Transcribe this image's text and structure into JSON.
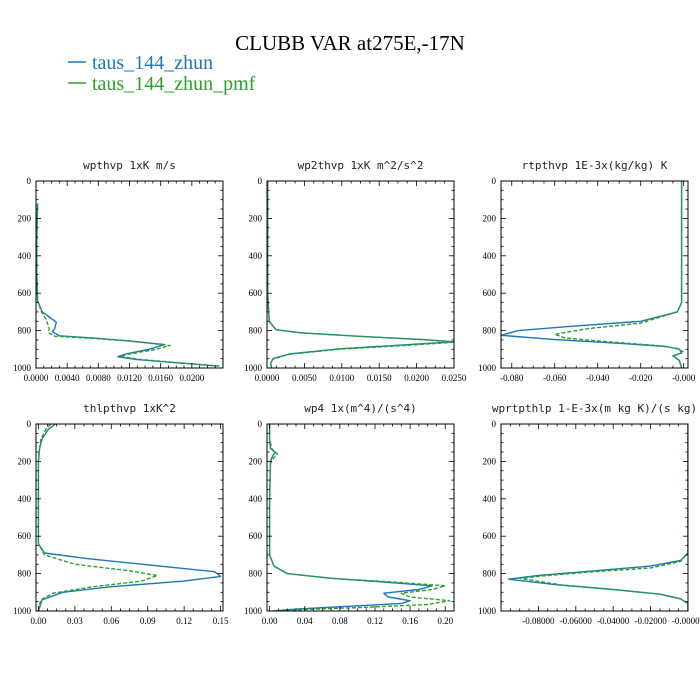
{
  "title": "CLUBB VAR at275E,-17N",
  "legend": [
    {
      "label": "taus_144_zhun",
      "color": "#1f77b4",
      "dash": "solid"
    },
    {
      "label": "taus_144_zhun_pmf",
      "color": "#2ca02c",
      "dash": "dashed"
    }
  ],
  "chart_data": [
    {
      "type": "line",
      "title": "wpthvp  1xK m/s",
      "xlim": [
        0.0,
        0.024
      ],
      "ylim": [
        1000,
        0
      ],
      "xticks": [
        0.0,
        0.004,
        0.008,
        0.012,
        0.016,
        0.02
      ],
      "xticklabels": [
        "0.0000",
        "0.0040",
        "0.0080",
        "0.0120",
        "0.0160",
        "0.0200"
      ],
      "yticks": [
        0,
        200,
        400,
        600,
        800,
        1000
      ],
      "yticklabels": [
        "0",
        "200",
        "400",
        "600",
        "800",
        "1000"
      ],
      "series": [
        {
          "name": "taus_144_zhun",
          "points": [
            [
              0.0002,
              120
            ],
            [
              0.0001,
              300
            ],
            [
              0.0001,
              500
            ],
            [
              0.0002,
              640
            ],
            [
              0.0008,
              700
            ],
            [
              0.0018,
              730
            ],
            [
              0.0026,
              755
            ],
            [
              0.0024,
              790
            ],
            [
              0.0021,
              805
            ],
            [
              0.003,
              828
            ],
            [
              0.0075,
              840
            ],
            [
              0.012,
              855
            ],
            [
              0.0165,
              875
            ],
            [
              0.0145,
              900
            ],
            [
              0.0115,
              925
            ],
            [
              0.0105,
              940
            ],
            [
              0.013,
              955
            ],
            [
              0.0175,
              970
            ],
            [
              0.0235,
              990
            ]
          ]
        },
        {
          "name": "taus_144_zhun_pmf",
          "points": [
            [
              0.0002,
              120
            ],
            [
              0.0001,
              300
            ],
            [
              0.0001,
              500
            ],
            [
              0.0002,
              640
            ],
            [
              0.0007,
              700
            ],
            [
              0.0013,
              740
            ],
            [
              0.0017,
              790
            ],
            [
              0.0016,
              810
            ],
            [
              0.0024,
              830
            ],
            [
              0.0075,
              842
            ],
            [
              0.0125,
              858
            ],
            [
              0.0172,
              880
            ],
            [
              0.0152,
              902
            ],
            [
              0.012,
              925
            ],
            [
              0.0108,
              938
            ],
            [
              0.0135,
              955
            ],
            [
              0.0178,
              970
            ],
            [
              0.0235,
              990
            ]
          ]
        }
      ]
    },
    {
      "type": "line",
      "title": "wp2thvp  1xK m^2/s^2",
      "xlim": [
        0.0,
        0.025
      ],
      "ylim": [
        1000,
        0
      ],
      "xticks": [
        0.0,
        0.005,
        0.01,
        0.015,
        0.02,
        0.025
      ],
      "xticklabels": [
        "0.0000",
        "0.0050",
        "0.0100",
        "0.0150",
        "0.0200",
        "0.0250"
      ],
      "yticks": [
        0,
        200,
        400,
        600,
        800,
        1000
      ],
      "yticklabels": [
        "0",
        "200",
        "400",
        "600",
        "800",
        "1000"
      ],
      "series": [
        {
          "name": "taus_144_zhun",
          "points": [
            [
              0.0001,
              0
            ],
            [
              0.0001,
              300
            ],
            [
              0.0001,
              600
            ],
            [
              0.0003,
              750
            ],
            [
              0.0012,
              795
            ],
            [
              0.0045,
              812
            ],
            [
              0.012,
              830
            ],
            [
              0.021,
              848
            ],
            [
              0.025,
              860
            ],
            [
              0.019,
              875
            ],
            [
              0.0095,
              898
            ],
            [
              0.003,
              925
            ],
            [
              0.0008,
              950
            ],
            [
              0.0005,
              975
            ],
            [
              0.0006,
              1000
            ]
          ]
        },
        {
          "name": "taus_144_zhun_pmf",
          "points": [
            [
              0.0001,
              0
            ],
            [
              0.0001,
              300
            ],
            [
              0.0001,
              600
            ],
            [
              0.0003,
              750
            ],
            [
              0.0012,
              795
            ],
            [
              0.0045,
              812
            ],
            [
              0.012,
              830
            ],
            [
              0.021,
              849
            ],
            [
              0.025,
              862
            ],
            [
              0.019,
              878
            ],
            [
              0.0095,
              900
            ],
            [
              0.003,
              926
            ],
            [
              0.0008,
              952
            ],
            [
              0.0005,
              975
            ],
            [
              0.0006,
              1000
            ]
          ]
        }
      ]
    },
    {
      "type": "line",
      "title": "rtpthvp  1E-3x(kg/kg) K",
      "xlim": [
        -0.085,
        0.002
      ],
      "ylim": [
        1000,
        0
      ],
      "xticks": [
        -0.08,
        -0.06,
        -0.04,
        -0.02,
        0.0
      ],
      "xticklabels": [
        "-0.080",
        "-0.060",
        "-0.040",
        "-0.020",
        "-0.000"
      ],
      "yticks": [
        0,
        200,
        400,
        600,
        800,
        1000
      ],
      "yticklabels": [
        "0",
        "200",
        "400",
        "600",
        "800",
        "1000"
      ],
      "series": [
        {
          "name": "taus_144_zhun",
          "points": [
            [
              -0.001,
              0
            ],
            [
              -0.001,
              300
            ],
            [
              -0.001,
              650
            ],
            [
              -0.003,
              700
            ],
            [
              -0.02,
              750
            ],
            [
              -0.05,
              775
            ],
            [
              -0.077,
              800
            ],
            [
              -0.085,
              825
            ],
            [
              -0.06,
              848
            ],
            [
              -0.03,
              868
            ],
            [
              -0.008,
              885
            ],
            [
              -0.002,
              900
            ],
            [
              -0.001,
              920
            ],
            [
              -0.005,
              935
            ],
            [
              -0.002,
              960
            ],
            [
              -0.001,
              1000
            ]
          ]
        },
        {
          "name": "taus_144_zhun_pmf",
          "points": [
            [
              -0.001,
              0
            ],
            [
              -0.001,
              300
            ],
            [
              -0.001,
              650
            ],
            [
              -0.003,
              700
            ],
            [
              -0.02,
              760
            ],
            [
              -0.045,
              790
            ],
            [
              -0.06,
              820
            ],
            [
              -0.055,
              840
            ],
            [
              -0.035,
              860
            ],
            [
              -0.012,
              880
            ],
            [
              -0.003,
              895
            ],
            [
              0.0,
              915
            ],
            [
              -0.005,
              935
            ],
            [
              -0.002,
              960
            ],
            [
              -0.001,
              1000
            ]
          ]
        }
      ]
    },
    {
      "type": "line",
      "title": "thlpthvp  1xK^2",
      "xlim": [
        -0.002,
        0.152
      ],
      "ylim": [
        1000,
        0
      ],
      "xticks": [
        0.0,
        0.03,
        0.06,
        0.09,
        0.12,
        0.15
      ],
      "xticklabels": [
        "0.00",
        "0.03",
        "0.06",
        "0.09",
        "0.12",
        "0.15"
      ],
      "yticks": [
        0,
        200,
        400,
        600,
        800,
        1000
      ],
      "yticklabels": [
        "0",
        "200",
        "400",
        "600",
        "800",
        "1000"
      ],
      "series": [
        {
          "name": "taus_144_zhun",
          "points": [
            [
              0.014,
              0
            ],
            [
              0.008,
              30
            ],
            [
              0.003,
              80
            ],
            [
              0.001,
              130
            ],
            [
              0.0,
              200
            ],
            [
              0.0,
              400
            ],
            [
              0.0,
              640
            ],
            [
              0.005,
              690
            ],
            [
              0.04,
              720
            ],
            [
              0.1,
              760
            ],
            [
              0.145,
              790
            ],
            [
              0.15,
              815
            ],
            [
              0.12,
              840
            ],
            [
              0.06,
              870
            ],
            [
              0.02,
              900
            ],
            [
              0.003,
              940
            ],
            [
              0.0,
              1000
            ]
          ]
        },
        {
          "name": "taus_144_zhun_pmf",
          "points": [
            [
              0.01,
              0
            ],
            [
              0.006,
              30
            ],
            [
              0.002,
              80
            ],
            [
              0.001,
              130
            ],
            [
              0.0,
              200
            ],
            [
              0.0,
              400
            ],
            [
              0.0,
              640
            ],
            [
              0.005,
              700
            ],
            [
              0.03,
              750
            ],
            [
              0.075,
              785
            ],
            [
              0.098,
              810
            ],
            [
              0.085,
              840
            ],
            [
              0.045,
              870
            ],
            [
              0.012,
              905
            ],
            [
              0.002,
              940
            ],
            [
              0.0,
              1000
            ]
          ]
        }
      ]
    },
    {
      "type": "line",
      "title": "wp4  1x(m^4)/(s^4)",
      "xlim": [
        -0.003,
        0.21
      ],
      "ylim": [
        1000,
        0
      ],
      "xticks": [
        0.0,
        0.04,
        0.08,
        0.12,
        0.16,
        0.2
      ],
      "xticklabels": [
        "0.00",
        "0.04",
        "0.08",
        "0.12",
        "0.16",
        "0.20"
      ],
      "yticks": [
        0,
        200,
        400,
        600,
        800,
        1000
      ],
      "yticklabels": [
        "0",
        "200",
        "400",
        "600",
        "800",
        "1000"
      ],
      "series": [
        {
          "name": "taus_144_zhun",
          "points": [
            [
              0.0,
              0
            ],
            [
              0.0,
              80
            ],
            [
              0.001,
              130
            ],
            [
              0.006,
              150
            ],
            [
              0.003,
              175
            ],
            [
              0.001,
              200
            ],
            [
              0.0,
              400
            ],
            [
              0.0,
              700
            ],
            [
              0.005,
              760
            ],
            [
              0.02,
              800
            ],
            [
              0.07,
              825
            ],
            [
              0.13,
              845
            ],
            [
              0.185,
              865
            ],
            [
              0.17,
              885
            ],
            [
              0.13,
              905
            ],
            [
              0.135,
              925
            ],
            [
              0.16,
              945
            ],
            [
              0.15,
              960
            ],
            [
              0.09,
              975
            ],
            [
              0.03,
              990
            ],
            [
              0.004,
              1000
            ]
          ]
        },
        {
          "name": "taus_144_zhun_pmf",
          "points": [
            [
              0.0,
              0
            ],
            [
              0.0,
              80
            ],
            [
              0.003,
              140
            ],
            [
              0.009,
              160
            ],
            [
              0.004,
              185
            ],
            [
              0.001,
              210
            ],
            [
              0.0,
              400
            ],
            [
              0.0,
              700
            ],
            [
              0.005,
              760
            ],
            [
              0.02,
              800
            ],
            [
              0.07,
              825
            ],
            [
              0.14,
              845
            ],
            [
              0.2,
              865
            ],
            [
              0.185,
              885
            ],
            [
              0.15,
              905
            ],
            [
              0.16,
              925
            ],
            [
              0.205,
              945
            ],
            [
              0.18,
              965
            ],
            [
              0.11,
              980
            ],
            [
              0.04,
              992
            ],
            [
              0.004,
              1000
            ]
          ]
        }
      ]
    },
    {
      "type": "line",
      "title": "wprtpthlp  1-E-3x(m kg K)/(s kg)",
      "xlim": [
        -0.1,
        0.0
      ],
      "ylim": [
        1000,
        0
      ],
      "xticks": [
        -0.08,
        -0.06,
        -0.04,
        -0.02,
        0.0
      ],
      "xticklabels": [
        "-0.08000",
        "-0.06000",
        "-0.04000",
        "-0.02000",
        "-0.00000"
      ],
      "yticks": [
        0,
        200,
        400,
        600,
        800,
        1000
      ],
      "yticklabels": [
        "0",
        "200",
        "400",
        "600",
        "800",
        "1000"
      ],
      "series": [
        {
          "name": "taus_144_zhun",
          "points": [
            [
              0.0,
              0
            ],
            [
              0.0,
              400
            ],
            [
              0.0,
              690
            ],
            [
              -0.004,
              730
            ],
            [
              -0.02,
              760
            ],
            [
              -0.05,
              785
            ],
            [
              -0.08,
              810
            ],
            [
              -0.096,
              830
            ],
            [
              -0.07,
              860
            ],
            [
              -0.04,
              885
            ],
            [
              -0.015,
              910
            ],
            [
              -0.004,
              935
            ],
            [
              0.0,
              960
            ],
            [
              0.0,
              1000
            ]
          ]
        },
        {
          "name": "taus_144_zhun_pmf",
          "points": [
            [
              0.0,
              0
            ],
            [
              0.0,
              400
            ],
            [
              0.0,
              690
            ],
            [
              -0.004,
              735
            ],
            [
              -0.02,
              770
            ],
            [
              -0.05,
              790
            ],
            [
              -0.075,
              810
            ],
            [
              -0.09,
              825
            ],
            [
              -0.068,
              860
            ],
            [
              -0.04,
              885
            ],
            [
              -0.015,
              910
            ],
            [
              -0.004,
              935
            ],
            [
              0.0,
              960
            ],
            [
              0.0,
              1000
            ]
          ]
        }
      ]
    }
  ]
}
